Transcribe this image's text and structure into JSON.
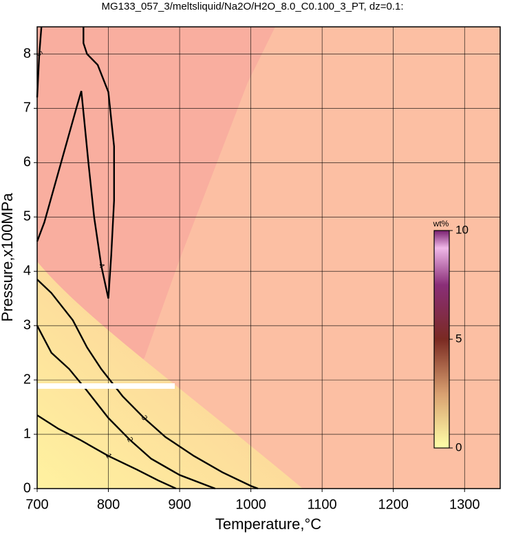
{
  "chart_data": {
    "type": "contour",
    "title": "MG133_057_3/meltsliquid/Na2O/H2O_8.0_C0.100_3_PT, dz=0.1:",
    "x_label": "Temperature,°C",
    "y_label": "Pressure,x100MPa",
    "xlim": [
      700,
      1350
    ],
    "ylim": [
      0,
      8.5
    ],
    "xticks": [
      700,
      800,
      900,
      1000,
      1100,
      1200,
      1300
    ],
    "yticks": [
      0,
      1,
      2,
      3,
      4,
      5,
      6,
      7,
      8
    ],
    "grid": true,
    "contours": [
      {
        "level": 1,
        "x": [
          700,
          730,
          760,
          800,
          840,
          870,
          895
        ],
        "y": [
          1.35,
          1.1,
          0.9,
          0.6,
          0.35,
          0.15,
          0
        ]
      },
      {
        "level": 2,
        "x": [
          700,
          720,
          745,
          770,
          800,
          830,
          860,
          900,
          940,
          950
        ],
        "y": [
          3.0,
          2.5,
          2.2,
          1.8,
          1.3,
          0.9,
          0.55,
          0.25,
          0.05,
          0
        ]
      },
      {
        "level": 3,
        "x": [
          700,
          720,
          750,
          770,
          790,
          820,
          850,
          880,
          920,
          960,
          1000,
          1010
        ],
        "y": [
          3.85,
          3.6,
          3.1,
          2.6,
          2.2,
          1.7,
          1.3,
          0.95,
          0.6,
          0.3,
          0.05,
          0
        ]
      },
      {
        "level": 4,
        "x": [
          700,
          710,
          725,
          740,
          755,
          762,
          766,
          772,
          780,
          790,
          800,
          804,
          808,
          808,
          800,
          785,
          770,
          765,
          765
        ],
        "y": [
          4.55,
          4.9,
          5.6,
          6.3,
          7.0,
          7.32,
          6.8,
          6.0,
          5.0,
          4.1,
          3.5,
          4.3,
          5.3,
          6.3,
          7.3,
          7.8,
          8.0,
          8.2,
          8.5
        ]
      },
      {
        "level": 5,
        "x": [
          700,
          703,
          706
        ],
        "y": [
          7.2,
          8.0,
          8.5
        ]
      }
    ],
    "colorbar": {
      "label": "wt%",
      "range": [
        0,
        10
      ],
      "ticks": [
        0,
        5,
        10
      ]
    }
  }
}
